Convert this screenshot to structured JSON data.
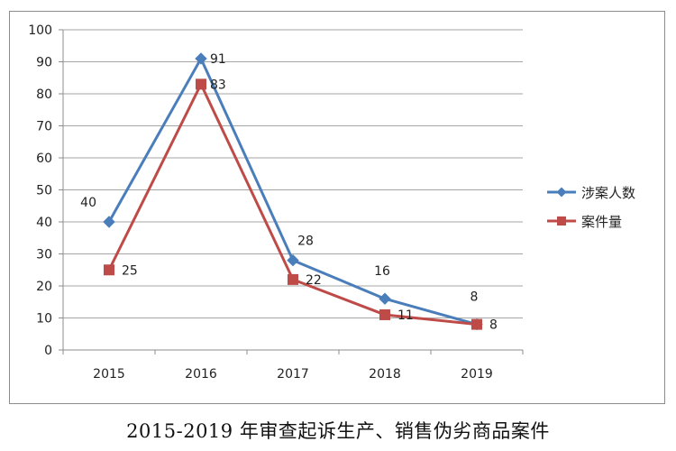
{
  "caption": "2015-2019 年审查起诉生产、销售伪劣商品案件",
  "chart_data": {
    "type": "line",
    "title": "",
    "xlabel": "",
    "ylabel": "",
    "categories": [
      "2015",
      "2016",
      "2017",
      "2018",
      "2019"
    ],
    "ylim": [
      0,
      100
    ],
    "yticks": [
      0,
      10,
      20,
      30,
      40,
      50,
      60,
      70,
      80,
      90,
      100
    ],
    "grid": true,
    "legend_position": "right",
    "series": [
      {
        "name": "涉案人数",
        "values": [
          40,
          91,
          28,
          16,
          8
        ],
        "color": "#4a7ebb",
        "marker": "diamond"
      },
      {
        "name": "案件量",
        "values": [
          25,
          83,
          22,
          11,
          8
        ],
        "color": "#be4b48",
        "marker": "square"
      }
    ]
  }
}
